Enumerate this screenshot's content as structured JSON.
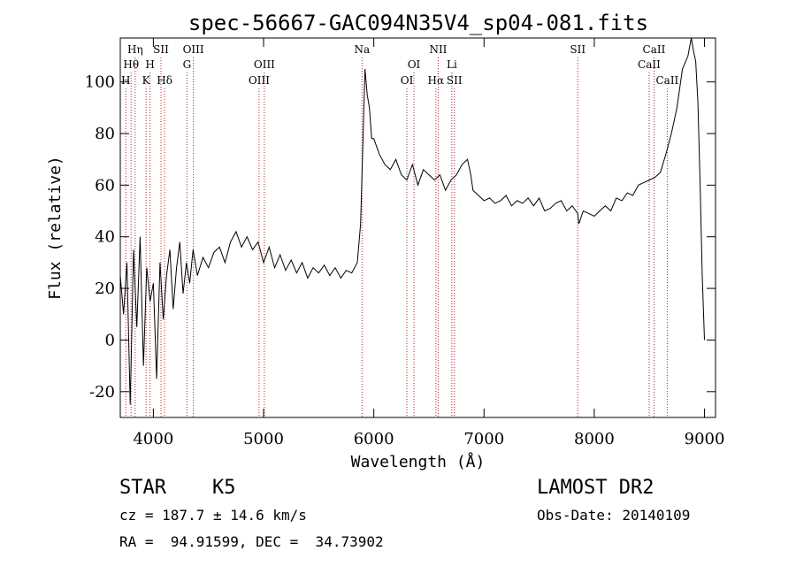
{
  "chart_data": {
    "type": "line",
    "title": "spec-56667-GAC094N35V4_sp04-081.fits",
    "xlabel": "Wavelength (Å)",
    "ylabel": "Flux (relative)",
    "xlim": [
      3700,
      9100
    ],
    "ylim": [
      -30,
      117
    ],
    "x_ticks": [
      4000,
      5000,
      6000,
      7000,
      8000,
      9000
    ],
    "y_ticks": [
      -20,
      0,
      20,
      40,
      60,
      80,
      100
    ],
    "grid": false,
    "series": [
      {
        "x": [
          3700,
          3730,
          3760,
          3790,
          3820,
          3850,
          3880,
          3910,
          3940,
          3970,
          4000,
          4030,
          4060,
          4090,
          4120,
          4150,
          4180,
          4210,
          4240,
          4270,
          4300,
          4330,
          4360,
          4400,
          4450,
          4500,
          4550,
          4600,
          4650,
          4700,
          4750,
          4800,
          4850,
          4900,
          4950,
          5000,
          5050,
          5100,
          5150,
          5200,
          5250,
          5300,
          5350,
          5400,
          5450,
          5500,
          5550,
          5600,
          5650,
          5700,
          5750,
          5800,
          5850,
          5880,
          5900,
          5920,
          5940,
          5960,
          5980,
          6000,
          6050,
          6100,
          6150,
          6200,
          6250,
          6300,
          6350,
          6400,
          6450,
          6500,
          6550,
          6600,
          6650,
          6700,
          6750,
          6800,
          6850,
          6880,
          6900,
          6950,
          7000,
          7050,
          7100,
          7150,
          7200,
          7250,
          7300,
          7350,
          7400,
          7450,
          7500,
          7550,
          7600,
          7650,
          7700,
          7750,
          7800,
          7850,
          7860,
          7900,
          7950,
          8000,
          8050,
          8100,
          8150,
          8200,
          8250,
          8300,
          8350,
          8400,
          8450,
          8500,
          8550,
          8600,
          8650,
          8700,
          8750,
          8800,
          8850,
          8880,
          8900,
          8920,
          8940,
          8960,
          8980,
          9000
        ],
        "y": [
          25,
          10,
          30,
          -25,
          35,
          5,
          40,
          -10,
          28,
          15,
          22,
          -15,
          30,
          8,
          25,
          35,
          12,
          28,
          38,
          18,
          30,
          22,
          35,
          25,
          32,
          28,
          34,
          36,
          30,
          38,
          42,
          36,
          40,
          35,
          38,
          30,
          36,
          28,
          33,
          27,
          31,
          26,
          30,
          24,
          28,
          26,
          29,
          25,
          28,
          24,
          27,
          26,
          30,
          45,
          75,
          105,
          95,
          90,
          78,
          78,
          72,
          68,
          66,
          70,
          64,
          62,
          68,
          60,
          66,
          64,
          62,
          64,
          58,
          62,
          64,
          68,
          70,
          64,
          58,
          56,
          54,
          55,
          53,
          54,
          56,
          52,
          54,
          53,
          55,
          52,
          55,
          50,
          51,
          53,
          54,
          50,
          52,
          49,
          45,
          50,
          49,
          48,
          50,
          52,
          50,
          55,
          54,
          57,
          56,
          60,
          61,
          62,
          63,
          65,
          72,
          80,
          90,
          105,
          110,
          117,
          112,
          108,
          92,
          60,
          25,
          0
        ]
      }
    ],
    "lines": [
      {
        "name": "Hη",
        "x": 3835,
        "row": 0
      },
      {
        "name": "Hθ",
        "x": 3798,
        "row": 1
      },
      {
        "name": "H",
        "x": 3750,
        "row": 2
      },
      {
        "name": "SII",
        "x": 4069,
        "row": 0
      },
      {
        "name": "H",
        "x": 3970,
        "row": 1
      },
      {
        "name": "K",
        "x": 3934,
        "row": 2
      },
      {
        "name": "Hδ",
        "x": 4102,
        "row": 2
      },
      {
        "name": "OIII",
        "x": 4363,
        "row": 0
      },
      {
        "name": "G",
        "x": 4305,
        "row": 1
      },
      {
        "name": "OIII",
        "x": 5007,
        "row": 1
      },
      {
        "name": "OIII",
        "x": 4959,
        "row": 2
      },
      {
        "name": "Na",
        "x": 5893,
        "row": 0
      },
      {
        "name": "OI",
        "x": 6364,
        "row": 1
      },
      {
        "name": "OI",
        "x": 6300,
        "row": 2
      },
      {
        "name": "NII",
        "x": 6584,
        "row": 0
      },
      {
        "name": "Hα",
        "x": 6563,
        "row": 2
      },
      {
        "name": "Li",
        "x": 6708,
        "row": 1
      },
      {
        "name": "SII",
        "x": 6731,
        "row": 2
      },
      {
        "name": "SII",
        "x": 7850,
        "row": 0
      },
      {
        "name": "CaII",
        "x": 8542,
        "row": 0
      },
      {
        "name": "CaII",
        "x": 8498,
        "row": 1
      },
      {
        "name": "CaII",
        "x": 8662,
        "row": 2
      }
    ]
  },
  "info": {
    "object_type": "STAR",
    "subclass": "K5",
    "survey": "LAMOST DR2",
    "cz": "cz = 187.7 ± 14.6 km/s",
    "obs_date": "Obs-Date: 20140109",
    "coords": "RA =  94.91599, DEC =  34.73902"
  },
  "colors": {
    "line_marker": "#b22222",
    "spectrum": "#000000",
    "axes": "#000000"
  }
}
